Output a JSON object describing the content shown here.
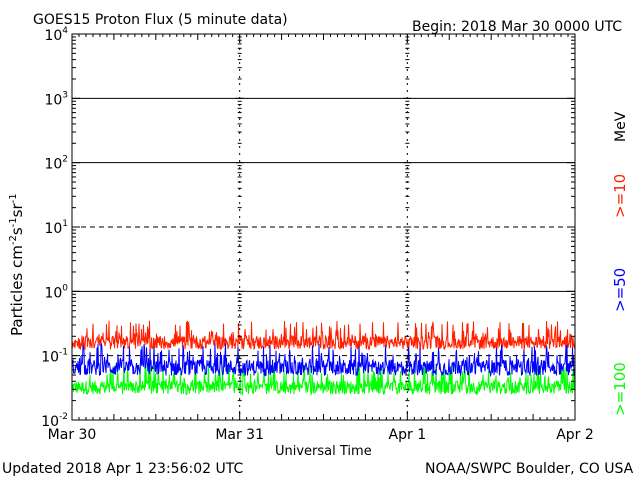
{
  "header": {
    "title": "GOES15 Proton Flux (5 minute data)",
    "begin": "Begin: 2018 Mar 30 0000 UTC"
  },
  "footer": {
    "updated": "Updated 2018 Apr  1 23:56:02 UTC",
    "credit": "NOAA/SWPC Boulder, CO USA"
  },
  "chart_data": {
    "type": "line",
    "title": "GOES15 Proton Flux (5 minute data)",
    "xlabel": "Universal Time",
    "ylabel": "Particles cm-2s-1sr-1",
    "yscale": "log",
    "ylim": [
      0.01,
      10000
    ],
    "xlim": [
      "2018-03-30",
      "2018-04-02"
    ],
    "x_ticks": [
      "Mar 30",
      "Mar 31",
      "Apr 1",
      "Apr 2"
    ],
    "y_ticks": [
      {
        "base": "10",
        "exp": "-2"
      },
      {
        "base": "10",
        "exp": "-1"
      },
      {
        "base": "10",
        "exp": "0"
      },
      {
        "base": "10",
        "exp": "1"
      },
      {
        "base": "10",
        "exp": "2"
      },
      {
        "base": "10",
        "exp": "3"
      },
      {
        "base": "10",
        "exp": "4"
      }
    ],
    "legend_placement": "right",
    "legend_unit": "MeV",
    "series": [
      {
        "name": ">=10",
        "color": "#ff2000",
        "typical": 0.16,
        "range": [
          0.12,
          0.35
        ]
      },
      {
        "name": ">=50",
        "color": "#0000ff",
        "typical": 0.065,
        "range": [
          0.045,
          0.16
        ]
      },
      {
        "name": ">=100",
        "color": "#00ff00",
        "typical": 0.032,
        "range": [
          0.025,
          0.075
        ]
      }
    ]
  },
  "colors": {
    "background": "#ffffff",
    "axes": "#000000"
  }
}
